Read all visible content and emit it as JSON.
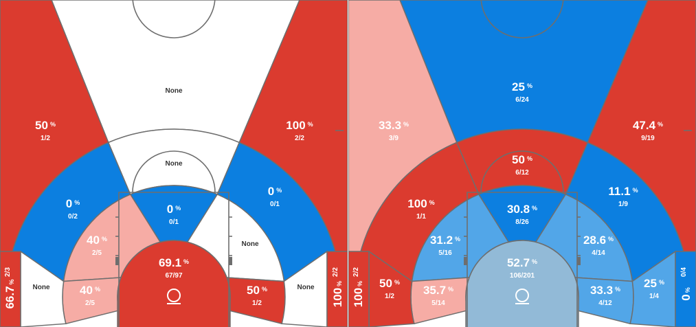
{
  "colors": {
    "hot": "#db3b2f",
    "warm": "#f6aca5",
    "cold": "#0c7fe0",
    "cool": "#52a6e8",
    "avg": "#92bad7",
    "empty": "#ffffff",
    "line": "#6e6e6e"
  },
  "icons": {
    "basket": "basket-ring-icon"
  },
  "chart_data": [
    {
      "type": "heatmap",
      "zones": [
        {
          "id": "backcourt",
          "pct": "",
          "made_attempts": "",
          "label": "None",
          "color": "empty"
        },
        {
          "id": "left-wing-three",
          "pct": "50",
          "made_attempts": "1/2",
          "label": "",
          "color": "hot"
        },
        {
          "id": "right-wing-three",
          "pct": "100",
          "made_attempts": "2/2",
          "label": "",
          "color": "hot"
        },
        {
          "id": "top-key-mid",
          "pct": "",
          "made_attempts": "",
          "label": "None",
          "color": "empty"
        },
        {
          "id": "left-mid-wing",
          "pct": "0",
          "made_attempts": "0/2",
          "label": "",
          "color": "cold"
        },
        {
          "id": "right-mid-wing",
          "pct": "0",
          "made_attempts": "0/1",
          "label": "",
          "color": "cold"
        },
        {
          "id": "paint-upper",
          "pct": "0",
          "made_attempts": "0/1",
          "label": "",
          "color": "cold"
        },
        {
          "id": "left-short-upper",
          "pct": "40",
          "made_attempts": "2/5",
          "label": "",
          "color": "warm"
        },
        {
          "id": "right-short-upper",
          "pct": "",
          "made_attempts": "",
          "label": "None",
          "color": "empty"
        },
        {
          "id": "left-short-lower",
          "pct": "40",
          "made_attempts": "2/5",
          "label": "",
          "color": "warm"
        },
        {
          "id": "right-short-lower",
          "pct": "50",
          "made_attempts": "1/2",
          "label": "",
          "color": "hot"
        },
        {
          "id": "restricted-area",
          "pct": "69.1",
          "made_attempts": "67/97",
          "label": "",
          "color": "hot"
        },
        {
          "id": "left-baseline-mid",
          "pct": "",
          "made_attempts": "",
          "label": "None",
          "color": "empty"
        },
        {
          "id": "right-baseline-mid",
          "pct": "",
          "made_attempts": "",
          "label": "None",
          "color": "empty"
        },
        {
          "id": "left-corner-three",
          "pct": "66.7",
          "made_attempts": "2/3",
          "label": "",
          "color": "hot"
        },
        {
          "id": "right-corner-three",
          "pct": "100",
          "made_attempts": "2/2",
          "label": "",
          "color": "hot"
        }
      ]
    },
    {
      "type": "heatmap",
      "zones": [
        {
          "id": "backcourt",
          "pct": "25",
          "made_attempts": "6/24",
          "label": "",
          "color": "cold"
        },
        {
          "id": "left-wing-three",
          "pct": "33.3",
          "made_attempts": "3/9",
          "label": "",
          "color": "warm"
        },
        {
          "id": "right-wing-three",
          "pct": "47.4",
          "made_attempts": "9/19",
          "label": "",
          "color": "hot"
        },
        {
          "id": "top-key-mid",
          "pct": "50",
          "made_attempts": "6/12",
          "label": "",
          "color": "hot"
        },
        {
          "id": "left-mid-wing",
          "pct": "100",
          "made_attempts": "1/1",
          "label": "",
          "color": "hot"
        },
        {
          "id": "right-mid-wing",
          "pct": "11.1",
          "made_attempts": "1/9",
          "label": "",
          "color": "cold"
        },
        {
          "id": "paint-upper",
          "pct": "30.8",
          "made_attempts": "8/26",
          "label": "",
          "color": "cold"
        },
        {
          "id": "left-short-upper",
          "pct": "31.2",
          "made_attempts": "5/16",
          "label": "",
          "color": "cool"
        },
        {
          "id": "right-short-upper",
          "pct": "28.6",
          "made_attempts": "4/14",
          "label": "",
          "color": "cool"
        },
        {
          "id": "left-short-lower",
          "pct": "35.7",
          "made_attempts": "5/14",
          "label": "",
          "color": "warm"
        },
        {
          "id": "right-short-lower",
          "pct": "33.3",
          "made_attempts": "4/12",
          "label": "",
          "color": "cool"
        },
        {
          "id": "restricted-area",
          "pct": "52.7",
          "made_attempts": "106/201",
          "label": "",
          "color": "avg"
        },
        {
          "id": "left-baseline-mid",
          "pct": "50",
          "made_attempts": "1/2",
          "label": "",
          "color": "hot"
        },
        {
          "id": "right-baseline-mid",
          "pct": "25",
          "made_attempts": "1/4",
          "label": "",
          "color": "cool"
        },
        {
          "id": "left-corner-three",
          "pct": "100",
          "made_attempts": "2/2",
          "label": "",
          "color": "hot"
        },
        {
          "id": "right-corner-three",
          "pct": "0",
          "made_attempts": "0/4",
          "label": "",
          "color": "cold"
        }
      ]
    }
  ]
}
